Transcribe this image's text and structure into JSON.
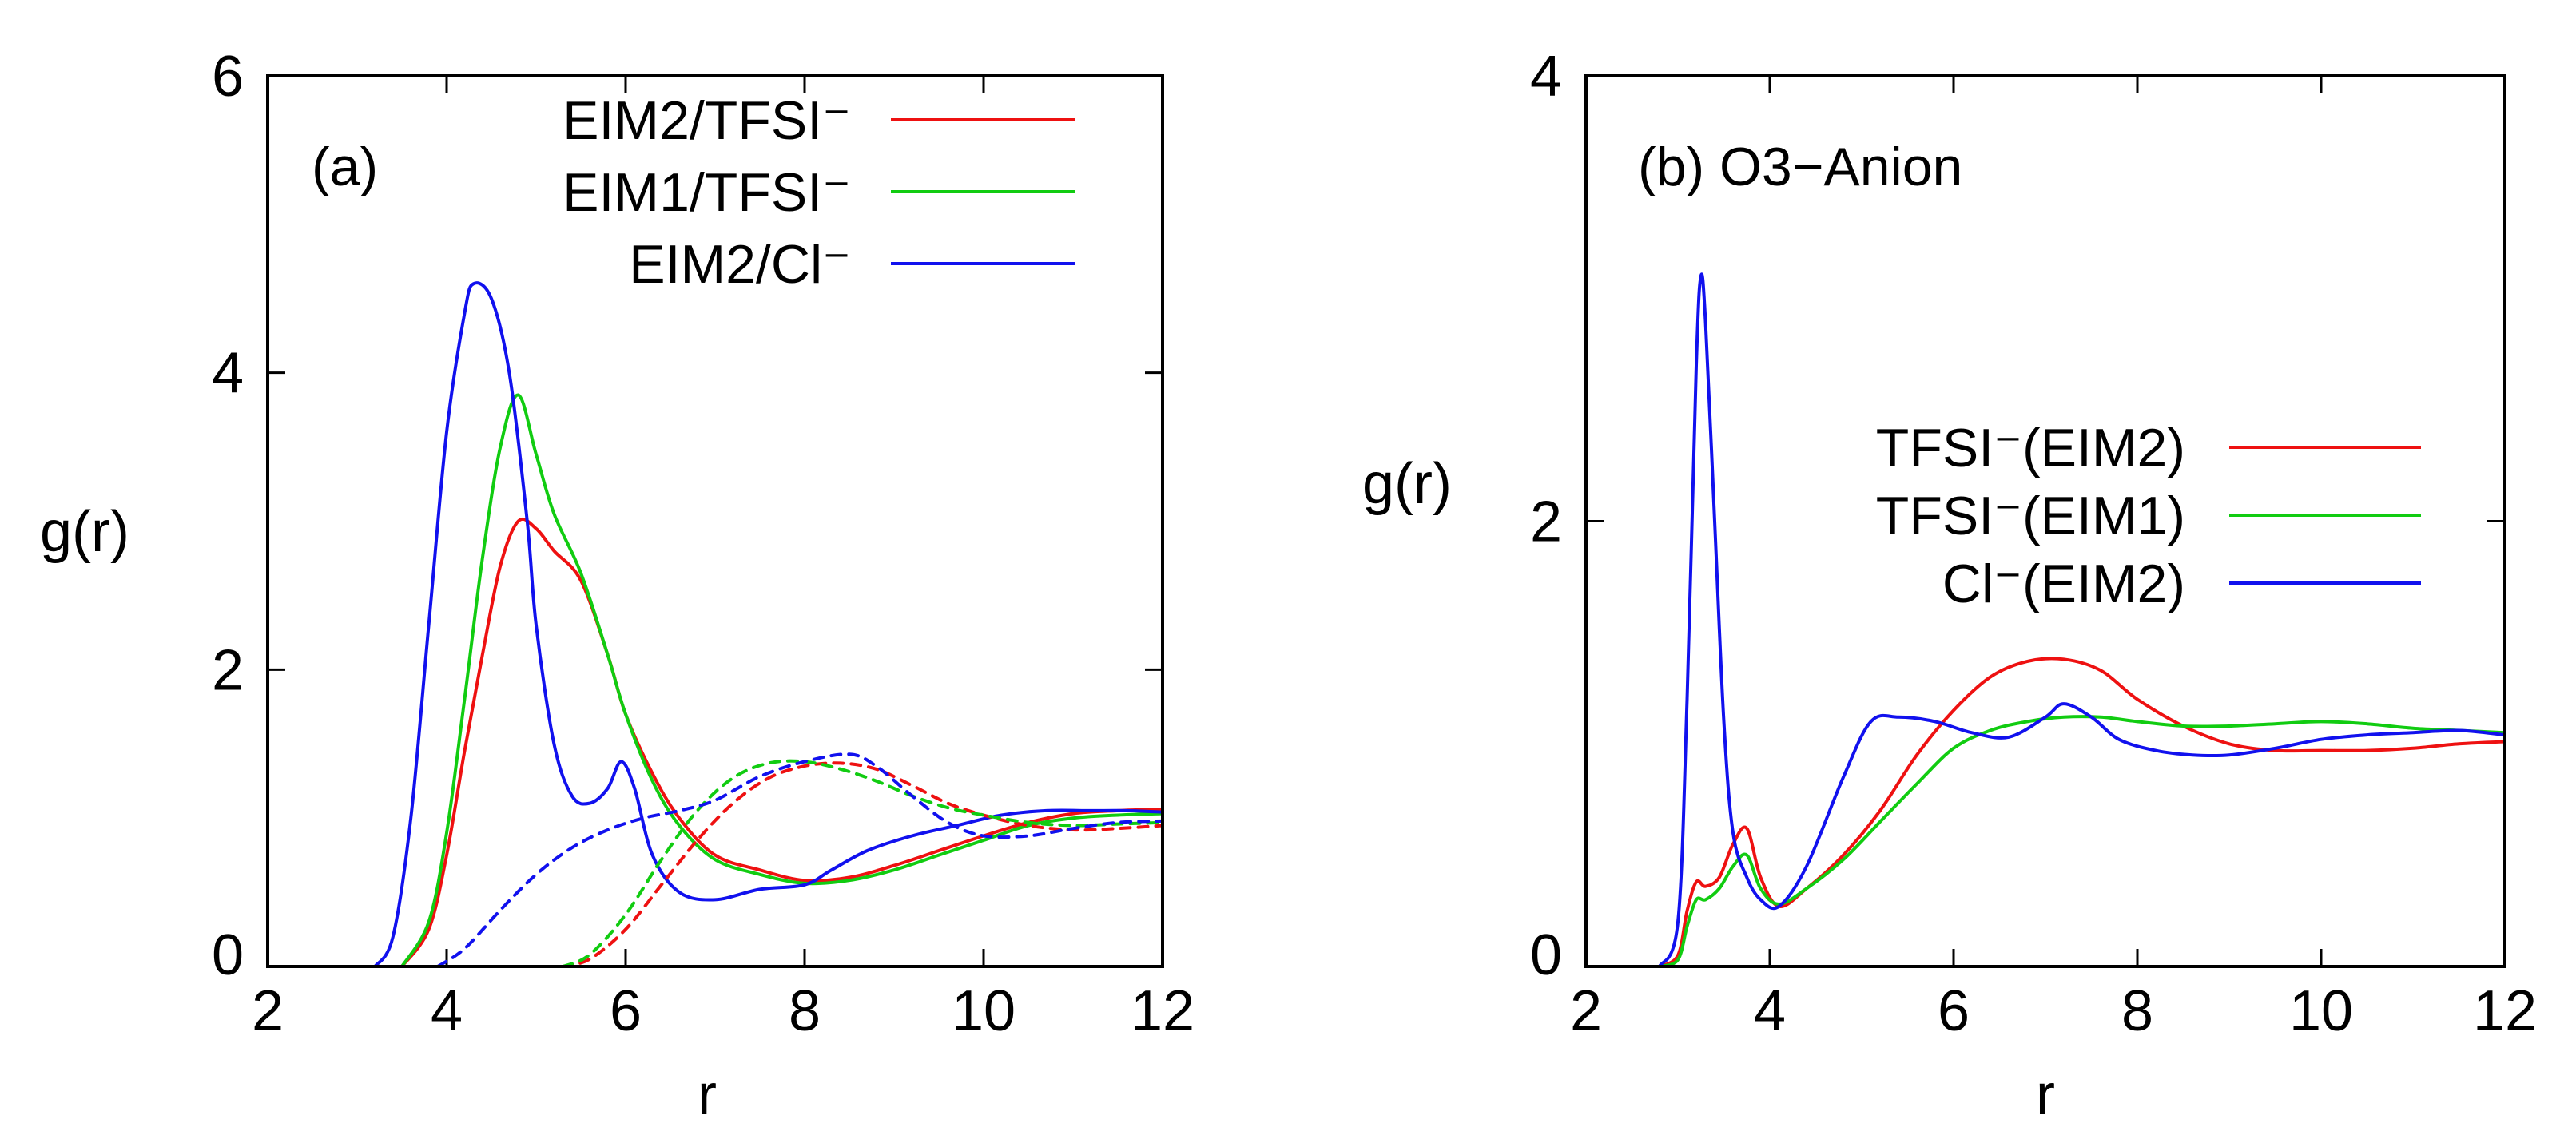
{
  "chart_data": [
    {
      "type": "line",
      "panel_label": "(a)",
      "xlabel": "r",
      "ylabel": "g(r)",
      "xlim": [
        2,
        12
      ],
      "ylim": [
        0,
        6
      ],
      "xticks": [
        "2",
        "4",
        "6",
        "8",
        "10",
        "12"
      ],
      "yticks": [
        "0",
        "2",
        "4",
        "6"
      ],
      "legend_position": "top-right",
      "series": [
        {
          "name": "EIM2/TFSI⁻",
          "color": "#ee1111",
          "style": "solid",
          "x": [
            3.5,
            3.8,
            4.0,
            4.2,
            4.4,
            4.6,
            4.8,
            5.0,
            5.2,
            5.5,
            5.8,
            6.0,
            6.3,
            6.6,
            7.0,
            7.5,
            8.0,
            8.5,
            9.0,
            9.5,
            10.0,
            10.5,
            11.0,
            11.5,
            12.0
          ],
          "y": [
            0.0,
            0.25,
            0.75,
            1.45,
            2.1,
            2.7,
            3.0,
            2.95,
            2.8,
            2.6,
            2.1,
            1.7,
            1.3,
            1.0,
            0.75,
            0.65,
            0.58,
            0.6,
            0.68,
            0.78,
            0.88,
            0.97,
            1.03,
            1.05,
            1.06
          ]
        },
        {
          "name": "EIM1/TFSI⁻",
          "color": "#11cc11",
          "style": "solid",
          "x": [
            3.5,
            3.8,
            4.0,
            4.2,
            4.4,
            4.6,
            4.8,
            5.0,
            5.2,
            5.5,
            5.8,
            6.0,
            6.3,
            6.6,
            7.0,
            7.5,
            8.0,
            8.5,
            9.0,
            9.5,
            10.0,
            10.5,
            11.0,
            11.5,
            12.0
          ],
          "y": [
            0.0,
            0.3,
            0.9,
            1.8,
            2.75,
            3.5,
            3.85,
            3.45,
            3.05,
            2.65,
            2.1,
            1.7,
            1.25,
            0.95,
            0.72,
            0.62,
            0.56,
            0.58,
            0.65,
            0.75,
            0.85,
            0.95,
            1.0,
            1.02,
            1.03
          ]
        },
        {
          "name": "EIM2/Cl⁻",
          "color": "#1111ee",
          "style": "solid",
          "x": [
            3.2,
            3.4,
            3.6,
            3.8,
            4.0,
            4.2,
            4.3,
            4.5,
            4.7,
            4.9,
            5.0,
            5.2,
            5.4,
            5.6,
            5.8,
            5.95,
            6.1,
            6.3,
            6.6,
            7.0,
            7.5,
            8.0,
            8.3,
            8.7,
            9.2,
            9.7,
            10.2,
            10.7,
            11.2,
            11.6,
            12.0
          ],
          "y": [
            0.0,
            0.2,
            1.0,
            2.3,
            3.6,
            4.4,
            4.6,
            4.5,
            4.0,
            3.0,
            2.3,
            1.5,
            1.15,
            1.1,
            1.2,
            1.38,
            1.2,
            0.75,
            0.5,
            0.45,
            0.52,
            0.55,
            0.65,
            0.78,
            0.88,
            0.95,
            1.02,
            1.05,
            1.05,
            1.05,
            1.04
          ]
        },
        {
          "name": "",
          "color": "#ee1111",
          "style": "dashed",
          "x": [
            5.3,
            5.6,
            6.0,
            6.4,
            6.8,
            7.2,
            7.6,
            8.0,
            8.4,
            8.8,
            9.2,
            9.6,
            10.0,
            10.5,
            11.0,
            11.5,
            12.0
          ],
          "y": [
            0.0,
            0.05,
            0.25,
            0.55,
            0.85,
            1.1,
            1.27,
            1.35,
            1.37,
            1.33,
            1.22,
            1.1,
            1.02,
            0.95,
            0.92,
            0.93,
            0.95
          ]
        },
        {
          "name": "",
          "color": "#11cc11",
          "style": "dashed",
          "x": [
            5.3,
            5.6,
            6.0,
            6.4,
            6.8,
            7.2,
            7.6,
            8.0,
            8.4,
            8.8,
            9.2,
            9.6,
            10.0,
            10.5,
            11.0,
            11.5,
            12.0
          ],
          "y": [
            0.0,
            0.08,
            0.35,
            0.72,
            1.05,
            1.27,
            1.37,
            1.38,
            1.33,
            1.25,
            1.15,
            1.07,
            1.02,
            0.97,
            0.95,
            0.96,
            0.97
          ]
        },
        {
          "name": "",
          "color": "#1111ee",
          "style": "dashed",
          "x": [
            3.9,
            4.2,
            4.6,
            5.0,
            5.4,
            5.8,
            6.2,
            6.6,
            7.0,
            7.5,
            8.0,
            8.5,
            8.8,
            9.2,
            9.6,
            10.0,
            10.5,
            11.0,
            11.5,
            12.0
          ],
          "y": [
            0.0,
            0.12,
            0.38,
            0.62,
            0.8,
            0.92,
            1.0,
            1.05,
            1.12,
            1.28,
            1.38,
            1.43,
            1.35,
            1.15,
            0.97,
            0.88,
            0.88,
            0.93,
            0.97,
            0.98
          ]
        }
      ]
    },
    {
      "type": "line",
      "panel_label": "(b) O3−Anion",
      "xlabel": "r",
      "ylabel": "g(r)",
      "xlim": [
        2,
        12
      ],
      "ylim": [
        0,
        4
      ],
      "xticks": [
        "2",
        "4",
        "6",
        "8",
        "10",
        "12"
      ],
      "yticks": [
        "0",
        "2",
        "4"
      ],
      "legend_position": "right",
      "series": [
        {
          "name": "TFSI⁻(EIM2)",
          "color": "#ee1111",
          "style": "solid",
          "x": [
            2.8,
            3.0,
            3.1,
            3.2,
            3.3,
            3.45,
            3.6,
            3.75,
            3.9,
            4.1,
            4.4,
            4.8,
            5.2,
            5.6,
            6.0,
            6.4,
            6.8,
            7.2,
            7.6,
            8.0,
            8.5,
            9.0,
            9.5,
            10.0,
            10.5,
            11.0,
            11.5,
            12.0
          ],
          "y": [
            0.0,
            0.05,
            0.25,
            0.38,
            0.36,
            0.4,
            0.55,
            0.62,
            0.4,
            0.27,
            0.35,
            0.5,
            0.7,
            0.95,
            1.15,
            1.3,
            1.37,
            1.38,
            1.33,
            1.2,
            1.08,
            1.0,
            0.97,
            0.97,
            0.97,
            0.98,
            1.0,
            1.01
          ]
        },
        {
          "name": "TFSI⁻(EIM1)",
          "color": "#11cc11",
          "style": "solid",
          "x": [
            2.8,
            3.0,
            3.1,
            3.2,
            3.3,
            3.45,
            3.6,
            3.75,
            3.9,
            4.1,
            4.4,
            4.8,
            5.2,
            5.6,
            6.0,
            6.4,
            6.8,
            7.2,
            7.6,
            8.0,
            8.5,
            9.0,
            9.5,
            10.0,
            10.5,
            11.0,
            11.5,
            12.0
          ],
          "y": [
            0.0,
            0.03,
            0.18,
            0.3,
            0.3,
            0.35,
            0.45,
            0.5,
            0.35,
            0.28,
            0.35,
            0.48,
            0.65,
            0.82,
            0.98,
            1.06,
            1.1,
            1.12,
            1.12,
            1.1,
            1.08,
            1.08,
            1.09,
            1.1,
            1.09,
            1.07,
            1.06,
            1.05
          ]
        },
        {
          "name": "Cl⁻(EIM2)",
          "color": "#1111ee",
          "style": "solid",
          "x": [
            2.8,
            3.0,
            3.1,
            3.2,
            3.25,
            3.3,
            3.4,
            3.5,
            3.6,
            3.75,
            3.9,
            4.1,
            4.4,
            4.8,
            5.1,
            5.4,
            5.8,
            6.2,
            6.6,
            7.0,
            7.2,
            7.5,
            7.8,
            8.2,
            8.6,
            9.0,
            9.5,
            10.0,
            10.5,
            11.0,
            11.5,
            12.0
          ],
          "y": [
            0.0,
            0.2,
            1.2,
            2.7,
            3.1,
            2.9,
            2.0,
            1.1,
            0.6,
            0.4,
            0.3,
            0.27,
            0.45,
            0.85,
            1.1,
            1.12,
            1.1,
            1.05,
            1.03,
            1.12,
            1.18,
            1.12,
            1.02,
            0.97,
            0.95,
            0.95,
            0.98,
            1.02,
            1.04,
            1.05,
            1.06,
            1.04
          ]
        }
      ]
    }
  ]
}
